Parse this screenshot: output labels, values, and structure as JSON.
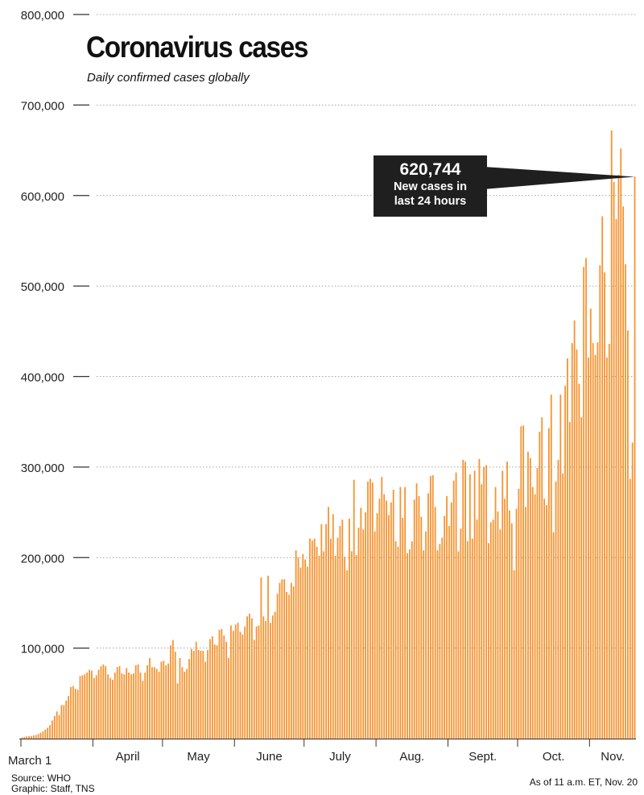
{
  "chart_data": {
    "type": "bar",
    "title": "Coronavirus cases",
    "subtitle": "Daily confirmed cases globally",
    "xlabel": "",
    "ylabel": "",
    "ylim": [
      0,
      800000
    ],
    "yticks": [
      100000,
      200000,
      300000,
      400000,
      500000,
      600000,
      700000,
      800000
    ],
    "ytick_labels": [
      "100,000",
      "200,000",
      "300,000",
      "400,000",
      "500,000",
      "600,000",
      "700,000",
      "800,000"
    ],
    "grid": "horizontal-dotted",
    "x_start": "March 1",
    "x_end": "Nov. 20",
    "month_labels": [
      {
        "label": "March 1",
        "day_index": 0
      },
      {
        "label": "April",
        "day_index": 31
      },
      {
        "label": "May",
        "day_index": 61
      },
      {
        "label": "June",
        "day_index": 92
      },
      {
        "label": "July",
        "day_index": 122
      },
      {
        "label": "Aug.",
        "day_index": 153
      },
      {
        "label": "Sept.",
        "day_index": 184
      },
      {
        "label": "Oct.",
        "day_index": 214
      },
      {
        "label": "Nov.",
        "day_index": 245
      }
    ],
    "bar_color": "#f7922f",
    "values": [
      1200,
      1800,
      2500,
      2700,
      3000,
      3500,
      4000,
      5000,
      6500,
      8000,
      10000,
      12000,
      15000,
      20000,
      25000,
      30000,
      26000,
      37000,
      37000,
      42000,
      47000,
      57000,
      58000,
      55000,
      54000,
      69000,
      70000,
      71000,
      73000,
      76000,
      75000,
      67000,
      70000,
      76000,
      80000,
      82000,
      80000,
      71000,
      67000,
      65000,
      73000,
      79000,
      80000,
      72000,
      71000,
      78000,
      73000,
      71000,
      72000,
      81000,
      82000,
      73000,
      64000,
      73000,
      81000,
      89000,
      79000,
      79000,
      77000,
      74000,
      85000,
      86000,
      81000,
      83000,
      103000,
      109000,
      96000,
      61000,
      89000,
      79000,
      74000,
      77000,
      88000,
      99000,
      97000,
      107000,
      98000,
      97000,
      97000,
      85000,
      98000,
      110000,
      113000,
      104000,
      103000,
      120000,
      121000,
      114000,
      107000,
      89000,
      125000,
      119000,
      126000,
      128000,
      118000,
      115000,
      124000,
      135000,
      138000,
      133000,
      109000,
      124000,
      125000,
      178000,
      135000,
      130000,
      180000,
      128000,
      136000,
      140000,
      160000,
      172000,
      176000,
      176000,
      162000,
      159000,
      172000,
      168000,
      208000,
      200000,
      189000,
      204000,
      198000,
      190000,
      221000,
      219000,
      221000,
      212000,
      202000,
      237000,
      207000,
      237000,
      256000,
      221000,
      248000,
      202000,
      222000,
      235000,
      242000,
      201000,
      186000,
      243000,
      207000,
      286000,
      203000,
      233000,
      255000,
      231000,
      250000,
      284000,
      287000,
      283000,
      229000,
      249000,
      265000,
      289000,
      270000,
      263000,
      247000,
      261000,
      275000,
      218000,
      212000,
      278000,
      244000,
      278000,
      205000,
      209000,
      218000,
      264000,
      282000,
      268000,
      245000,
      208000,
      229000,
      271000,
      290000,
      291000,
      256000,
      208000,
      215000,
      222000,
      246000,
      268000,
      235000,
      261000,
      285000,
      294000,
      207000,
      232000,
      308000,
      306000,
      218000,
      292000,
      221000,
      296000,
      242000,
      309000,
      281000,
      300000,
      302000,
      216000,
      239000,
      242000,
      278000,
      251000,
      231000,
      296000,
      265000,
      306000,
      252000,
      238000,
      186000,
      254000,
      276000,
      345000,
      346000,
      256000,
      317000,
      310000,
      278000,
      270000,
      299000,
      339000,
      355000,
      265000,
      258000,
      343000,
      380000,
      228000,
      284000,
      308000,
      380000,
      293000,
      390000,
      420000,
      350000,
      437000,
      462000,
      430000,
      392000,
      355000,
      521000,
      531000,
      421000,
      475000,
      437000,
      424000,
      438000,
      523000,
      577000,
      515000,
      421000,
      436000,
      672000,
      615000,
      574000,
      623000,
      652000,
      588000,
      524000,
      451000,
      287000,
      327000,
      620744
    ],
    "callout": {
      "value": "620,744",
      "line1": "New cases in",
      "line2": "last 24 hours"
    }
  },
  "footer": {
    "source": "Source: WHO",
    "graphic": "Graphic: Staff, TNS",
    "asof": "As of 11 a.m. ET, Nov. 20"
  }
}
